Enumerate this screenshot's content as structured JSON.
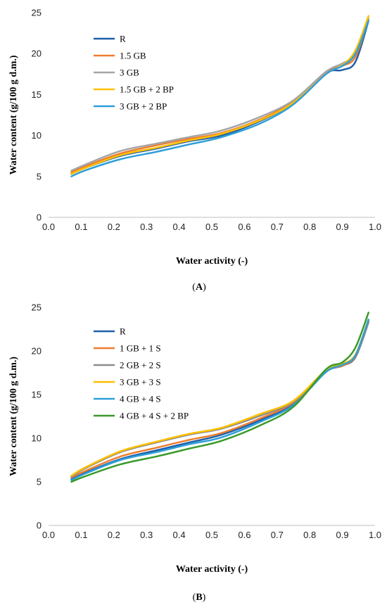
{
  "chart_data": [
    {
      "type": "line",
      "panel_label": "A",
      "xlabel": "Water activity (-)",
      "ylabel": "Water content (g/100 g d.m.)",
      "xlim": [
        0.0,
        1.0
      ],
      "ylim": [
        0,
        25
      ],
      "xticks": [
        "0.0",
        "0.1",
        "0.2",
        "0.3",
        "0.4",
        "0.5",
        "0.6",
        "0.7",
        "0.8",
        "0.9",
        "1.0"
      ],
      "yticks": [
        "0",
        "5",
        "10",
        "15",
        "20",
        "25"
      ],
      "grid": false,
      "legend_position": "top-left",
      "series": [
        {
          "name": "R",
          "color": "#1f5fa8",
          "x": [
            0.07,
            0.11,
            0.22,
            0.33,
            0.43,
            0.53,
            0.65,
            0.75,
            0.85,
            0.9,
            0.94,
            0.98
          ],
          "y": [
            5.3,
            6.0,
            7.5,
            8.4,
            9.3,
            10.0,
            11.8,
            14.0,
            17.6,
            18.0,
            19.0,
            24.0
          ]
        },
        {
          "name": "1.5 GB",
          "color": "#ed7d31",
          "x": [
            0.07,
            0.11,
            0.22,
            0.33,
            0.43,
            0.53,
            0.65,
            0.75,
            0.85,
            0.9,
            0.94,
            0.98
          ],
          "y": [
            5.5,
            6.2,
            7.8,
            8.8,
            9.6,
            10.3,
            12.0,
            14.2,
            17.7,
            18.5,
            19.6,
            24.2
          ]
        },
        {
          "name": "3 GB",
          "color": "#a5a5a5",
          "x": [
            0.07,
            0.11,
            0.22,
            0.33,
            0.43,
            0.53,
            0.65,
            0.75,
            0.85,
            0.9,
            0.94,
            0.98
          ],
          "y": [
            5.7,
            6.4,
            8.1,
            9.0,
            9.8,
            10.6,
            12.3,
            14.3,
            17.8,
            18.8,
            20.0,
            24.3
          ]
        },
        {
          "name": "1.5 GB + 2 BP",
          "color": "#ffc000",
          "x": [
            0.07,
            0.11,
            0.22,
            0.33,
            0.43,
            0.53,
            0.65,
            0.75,
            0.85,
            0.9,
            0.94,
            0.98
          ],
          "y": [
            5.3,
            6.0,
            7.6,
            8.5,
            9.4,
            10.2,
            11.9,
            14.0,
            17.5,
            18.6,
            20.4,
            24.6
          ]
        },
        {
          "name": "3 GB + 2 BP",
          "color": "#2e9fd8",
          "x": [
            0.07,
            0.11,
            0.22,
            0.33,
            0.43,
            0.53,
            0.65,
            0.75,
            0.85,
            0.9,
            0.94,
            0.98
          ],
          "y": [
            5.0,
            5.7,
            7.1,
            8.0,
            8.9,
            9.8,
            11.5,
            13.8,
            17.5,
            18.5,
            20.0,
            24.0
          ]
        }
      ]
    },
    {
      "type": "line",
      "panel_label": "B",
      "xlabel": "Water activity (-)",
      "ylabel": "Water content (g/100 g d.m.)",
      "xlim": [
        0.0,
        1.0
      ],
      "ylim": [
        0,
        25
      ],
      "xticks": [
        "0.0",
        "0.1",
        "0.2",
        "0.3",
        "0.4",
        "0.5",
        "0.6",
        "0.7",
        "0.8",
        "0.9",
        "1.0"
      ],
      "yticks": [
        "0",
        "5",
        "10",
        "15",
        "20",
        "25"
      ],
      "grid": false,
      "legend_position": "top-left",
      "series": [
        {
          "name": "R",
          "color": "#1f5fa8",
          "x": [
            0.07,
            0.11,
            0.22,
            0.33,
            0.43,
            0.53,
            0.65,
            0.75,
            0.85,
            0.9,
            0.94,
            0.98
          ],
          "y": [
            5.3,
            6.0,
            7.6,
            8.6,
            9.5,
            10.4,
            12.1,
            14.0,
            17.6,
            18.3,
            19.3,
            23.3
          ]
        },
        {
          "name": "1 GB + 1 S",
          "color": "#ed7d31",
          "x": [
            0.07,
            0.11,
            0.22,
            0.33,
            0.43,
            0.53,
            0.65,
            0.75,
            0.85,
            0.9,
            0.94,
            0.98
          ],
          "y": [
            5.5,
            6.2,
            7.9,
            8.9,
            9.8,
            10.6,
            12.3,
            14.1,
            17.7,
            18.3,
            19.4,
            23.4
          ]
        },
        {
          "name": "2 GB + 2 S",
          "color": "#8c8c8c",
          "x": [
            0.07,
            0.11,
            0.22,
            0.33,
            0.43,
            0.53,
            0.65,
            0.75,
            0.85,
            0.9,
            0.94,
            0.98
          ],
          "y": [
            5.6,
            6.5,
            8.4,
            9.5,
            10.4,
            11.1,
            12.6,
            14.2,
            17.8,
            18.5,
            19.5,
            23.5
          ]
        },
        {
          "name": "3 GB + 3 S",
          "color": "#ffc000",
          "x": [
            0.07,
            0.11,
            0.22,
            0.33,
            0.43,
            0.53,
            0.65,
            0.75,
            0.85,
            0.9,
            0.94,
            0.98
          ],
          "y": [
            5.7,
            6.6,
            8.5,
            9.6,
            10.5,
            11.2,
            12.8,
            14.3,
            17.8,
            18.5,
            19.6,
            23.6
          ]
        },
        {
          "name": "4 GB + 4 S",
          "color": "#2e9fd8",
          "x": [
            0.07,
            0.11,
            0.22,
            0.33,
            0.43,
            0.53,
            0.65,
            0.75,
            0.85,
            0.9,
            0.94,
            0.98
          ],
          "y": [
            5.2,
            5.9,
            7.5,
            8.4,
            9.3,
            10.1,
            11.9,
            13.8,
            17.6,
            18.4,
            19.5,
            23.6
          ]
        },
        {
          "name": "4 GB + 4 S + 2 BP",
          "color": "#3a9a2a",
          "x": [
            0.07,
            0.11,
            0.22,
            0.33,
            0.43,
            0.53,
            0.65,
            0.75,
            0.85,
            0.9,
            0.94,
            0.98
          ],
          "y": [
            5.0,
            5.6,
            7.0,
            7.9,
            8.8,
            9.7,
            11.5,
            13.6,
            17.9,
            18.7,
            20.4,
            24.4
          ]
        }
      ]
    }
  ]
}
